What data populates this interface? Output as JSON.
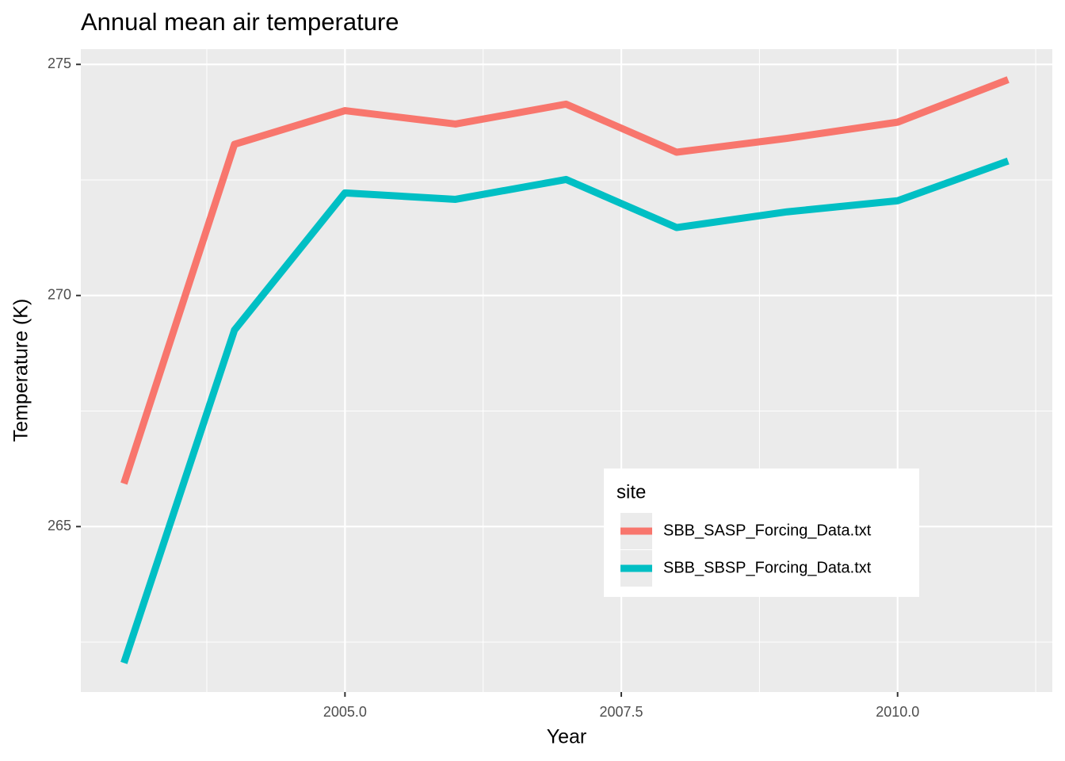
{
  "chart_data": {
    "type": "line",
    "title": "Annual mean air temperature",
    "x_label": "Year",
    "y_label": "Temperature (K)",
    "x": [
      2003,
      2004,
      2005,
      2006,
      2007,
      2008,
      2009,
      2010,
      2011
    ],
    "series": [
      {
        "name": "SBB_SASP_Forcing_Data.txt",
        "color": "#f8766d",
        "values": [
          265.93,
          273.27,
          274.0,
          273.71,
          274.14,
          273.1,
          273.4,
          273.75,
          274.67
        ]
      },
      {
        "name": "SBB_SBSP_Forcing_Data.txt",
        "color": "#00bfc4",
        "values": [
          262.05,
          269.25,
          272.22,
          272.08,
          272.51,
          271.47,
          271.81,
          272.05,
          272.91
        ]
      }
    ],
    "xlim": [
      2002.61,
      2011.4
    ],
    "ylim": [
      261.42,
      275.33
    ],
    "xticks": [
      {
        "value": 2005,
        "label": "2005.0"
      },
      {
        "value": 2007.5,
        "label": "2007.5"
      },
      {
        "value": 2010,
        "label": "2010.0"
      }
    ],
    "yticks": [
      265,
      270,
      275
    ],
    "grid": true,
    "minor_grid": true,
    "legend_title": "site",
    "legend_position": "inside-bottom-right"
  }
}
